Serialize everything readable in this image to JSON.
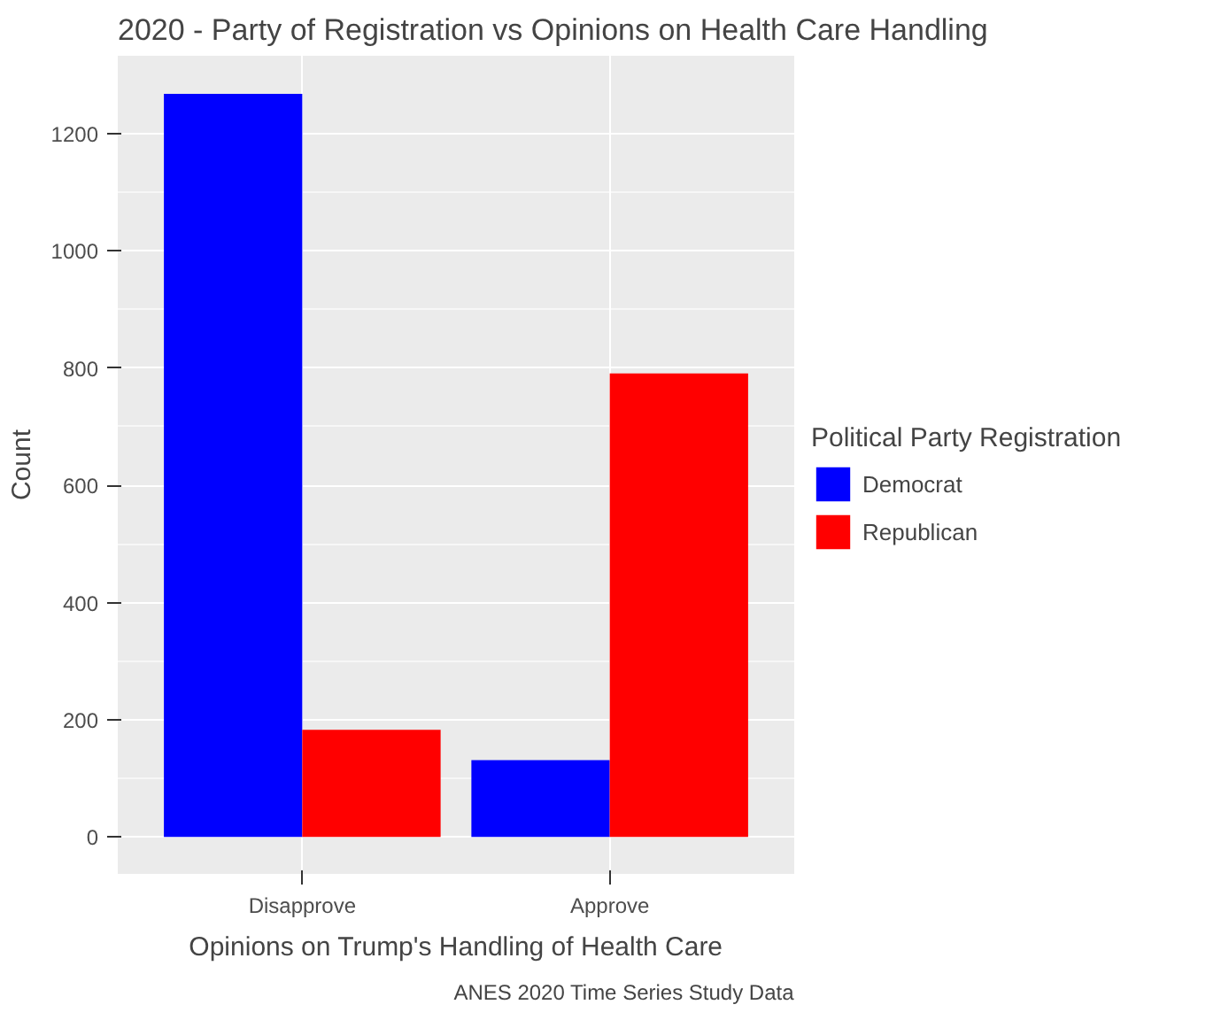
{
  "chart_data": {
    "type": "bar",
    "title": "2020 - Party of Registration vs Opinions on Health Care Handling",
    "xlabel": "Opinions on Trump's Handling of Health Care",
    "ylabel": "Count",
    "legend_title": "Political Party Registration",
    "categories": [
      "Disapprove",
      "Approve"
    ],
    "series": [
      {
        "name": "Democrat",
        "color": "#0000ff",
        "values": [
          1268,
          131
        ]
      },
      {
        "name": "Republican",
        "color": "#ff0000",
        "values": [
          183,
          791
        ]
      }
    ],
    "ylim": [
      -63,
      1333
    ],
    "yticks": [
      0,
      200,
      400,
      600,
      800,
      1000,
      1200
    ],
    "grid": true,
    "legend": "right",
    "annotations": [
      "ANES 2020 Time Series Study Data"
    ]
  }
}
